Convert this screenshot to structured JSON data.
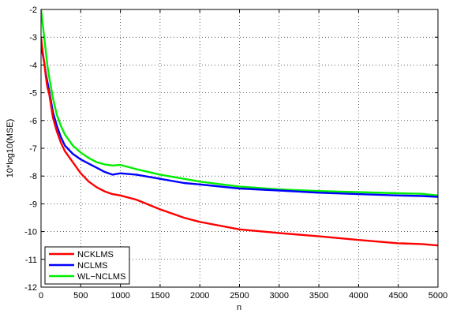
{
  "chart_data": {
    "type": "line",
    "title": "",
    "xlabel": "n",
    "ylabel": "10*log10(MSE)",
    "xlim": [
      0,
      5000
    ],
    "ylim": [
      -12,
      -2
    ],
    "xticks": [
      0,
      500,
      1000,
      1500,
      2000,
      2500,
      3000,
      3500,
      4000,
      4500,
      5000
    ],
    "yticks": [
      -12,
      -11,
      -10,
      -9,
      -8,
      -7,
      -6,
      -5,
      -4,
      -3,
      -2
    ],
    "grid": true,
    "legend_position": "bottom-left",
    "series": [
      {
        "name": "NCKLMS",
        "color": "#ff0000",
        "x": [
          0,
          20,
          40,
          60,
          80,
          100,
          150,
          200,
          250,
          300,
          400,
          500,
          600,
          700,
          800,
          900,
          1000,
          1200,
          1500,
          1800,
          2000,
          2500,
          3000,
          3500,
          4000,
          4500,
          4800,
          5000
        ],
        "y": [
          -3.0,
          -3.5,
          -3.9,
          -4.4,
          -4.8,
          -5.0,
          -5.9,
          -6.4,
          -6.8,
          -7.1,
          -7.5,
          -7.9,
          -8.2,
          -8.4,
          -8.55,
          -8.65,
          -8.7,
          -8.85,
          -9.2,
          -9.5,
          -9.65,
          -9.92,
          -10.05,
          -10.17,
          -10.3,
          -10.42,
          -10.45,
          -10.5
        ]
      },
      {
        "name": "NCLMS",
        "color": "#0000ff",
        "x": [
          0,
          20,
          40,
          60,
          80,
          100,
          150,
          200,
          250,
          300,
          400,
          500,
          600,
          700,
          800,
          900,
          1000,
          1200,
          1500,
          1800,
          2000,
          2500,
          3000,
          3500,
          4000,
          4500,
          4800,
          5000
        ],
        "y": [
          -3.2,
          -3.6,
          -3.9,
          -4.3,
          -4.6,
          -4.9,
          -5.7,
          -6.2,
          -6.6,
          -6.9,
          -7.2,
          -7.4,
          -7.55,
          -7.7,
          -7.85,
          -7.95,
          -7.9,
          -7.95,
          -8.1,
          -8.25,
          -8.3,
          -8.45,
          -8.52,
          -8.6,
          -8.65,
          -8.7,
          -8.72,
          -8.75
        ]
      },
      {
        "name": "WL−NCLMS",
        "color": "#00ee00",
        "x": [
          0,
          20,
          40,
          60,
          80,
          100,
          150,
          200,
          250,
          300,
          400,
          500,
          600,
          700,
          800,
          900,
          1000,
          1200,
          1500,
          1800,
          2000,
          2500,
          3000,
          3500,
          4000,
          4500,
          4800,
          5000
        ],
        "y": [
          -2.0,
          -2.5,
          -3.0,
          -3.5,
          -4.0,
          -4.4,
          -5.2,
          -5.8,
          -6.2,
          -6.5,
          -6.9,
          -7.15,
          -7.35,
          -7.5,
          -7.58,
          -7.62,
          -7.6,
          -7.75,
          -7.95,
          -8.1,
          -8.2,
          -8.38,
          -8.48,
          -8.54,
          -8.58,
          -8.62,
          -8.64,
          -8.7
        ]
      }
    ]
  }
}
